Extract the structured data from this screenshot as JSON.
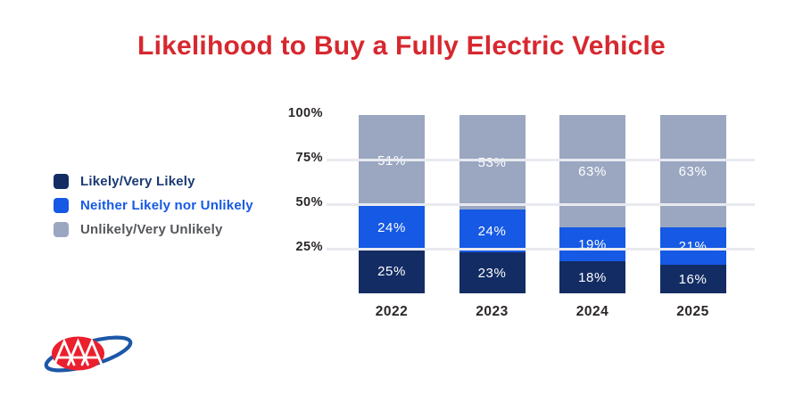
{
  "title": "Likelihood to Buy a Fully Electric Vehicle",
  "colors": {
    "title_red": "#D7282F",
    "navy": "#132C63",
    "blue": "#1559E4",
    "gray_blue": "#9BA7C1",
    "axis_text": "#2B2627",
    "gridline": "#E8EAF0",
    "bar_label": "#FFFFFF",
    "logo_red": "#EB1F2D",
    "logo_blue": "#1C57A8"
  },
  "legend": {
    "items": [
      {
        "label": "Likely/Very Likely",
        "swatch": "#132C63",
        "text_color": "#1A3A75"
      },
      {
        "label": "Neither Likely nor Unlikely",
        "swatch": "#1559E4",
        "text_color": "#1559E4"
      },
      {
        "label": "Unlikely/Very Unlikely",
        "swatch": "#9BA7C1",
        "text_color": "#54565B"
      }
    ]
  },
  "chart_data": {
    "type": "bar",
    "stacked": true,
    "title": "Likelihood to Buy a Fully Electric Vehicle",
    "categories": [
      "2022",
      "2023",
      "2024",
      "2025"
    ],
    "series": [
      {
        "name": "Likely/Very Likely",
        "color": "#132C63",
        "values": [
          25,
          23,
          18,
          16
        ]
      },
      {
        "name": "Neither Likely nor Unlikely",
        "color": "#1559E4",
        "values": [
          24,
          24,
          19,
          21
        ]
      },
      {
        "name": "Unlikely/Very Unlikely",
        "color": "#9BA7C1",
        "values": [
          51,
          53,
          63,
          63
        ]
      }
    ],
    "value_label_format": "{v}%",
    "y_ticks": [
      {
        "label": "100%",
        "value": 100,
        "gridline": false
      },
      {
        "label": "75%",
        "value": 75,
        "gridline": true
      },
      {
        "label": "50%",
        "value": 50,
        "gridline": true
      },
      {
        "label": "25%",
        "value": 25,
        "gridline": true
      }
    ],
    "ylim": [
      0,
      100
    ],
    "xlabel": "",
    "ylabel": "",
    "legend_position": "left",
    "grid": "horizontal-white-lines-over-bars"
  },
  "logo": {
    "name": "AAA",
    "letters": "AAA"
  }
}
